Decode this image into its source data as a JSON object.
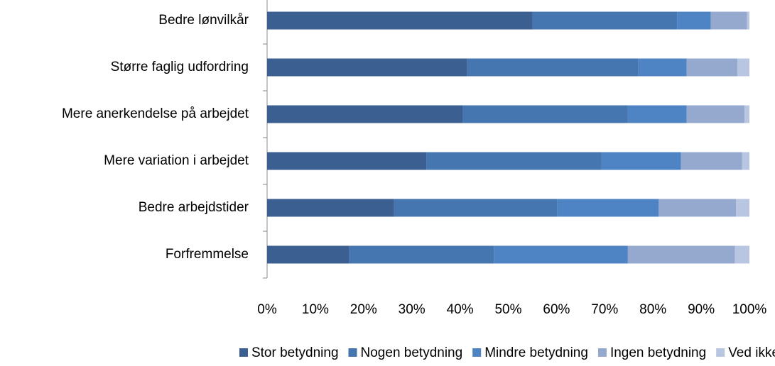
{
  "chart_data": {
    "type": "stacked-bar-horizontal",
    "categories": [
      "Bedre lønvilkår",
      "Større faglig udfordring",
      "Mere anerkendelse på arbejdet",
      "Mere variation i arbejdet",
      "Bedre arbejdstider",
      "Forfremmelse"
    ],
    "series": [
      {
        "name": "Stor betydning",
        "color": "#3b5f91",
        "values": [
          55,
          41.5,
          40.5,
          33,
          26.3,
          17
        ]
      },
      {
        "name": "Nogen betydning",
        "color": "#4676b0",
        "values": [
          30,
          35.5,
          34.3,
          36.3,
          33.9,
          30
        ]
      },
      {
        "name": "Mindre betydning",
        "color": "#4f84c4",
        "values": [
          7,
          10,
          12.2,
          16.5,
          21,
          27.8
        ]
      },
      {
        "name": "Ingen betydning",
        "color": "#95a9cf",
        "values": [
          7.5,
          10.5,
          12,
          12.7,
          16,
          22.2
        ]
      },
      {
        "name": "Ved ikke",
        "color": "#b9c6e1",
        "values": [
          0.5,
          2.5,
          1,
          1.5,
          2.8,
          3
        ]
      }
    ],
    "xlim": [
      0,
      100
    ],
    "xticks": [
      {
        "value": 0,
        "label": "0%"
      },
      {
        "value": 10,
        "label": "10%"
      },
      {
        "value": 20,
        "label": "20%"
      },
      {
        "value": 30,
        "label": "30%"
      },
      {
        "value": 40,
        "label": "40%"
      },
      {
        "value": 50,
        "label": "50%"
      },
      {
        "value": 60,
        "label": "60%"
      },
      {
        "value": 70,
        "label": "70%"
      },
      {
        "value": 80,
        "label": "80%"
      },
      {
        "value": 90,
        "label": "90%"
      },
      {
        "value": 100,
        "label": "100%"
      }
    ],
    "legend": "bottom"
  }
}
